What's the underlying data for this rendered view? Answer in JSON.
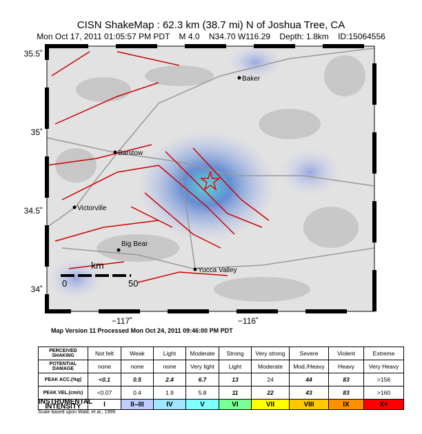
{
  "header": {
    "title": "CISN ShakeMap : 62.3 km (38.7 mi) N of Joshua Tree, CA",
    "subtitle": "Mon Oct 17, 2011 01:05:57 PM PDT    M 4.0    N34.70 W116.29    Depth: 1.8km    ID:15064556"
  },
  "map": {
    "lat_labels": [
      "35.5˚",
      "35˚",
      "34.5˚",
      "34˚"
    ],
    "lon_labels": [
      "−117˚",
      "−116˚"
    ],
    "cities": [
      "Baker",
      "Barstow",
      "Victorville",
      "Big Bear",
      "Yucca Valley"
    ],
    "scale": {
      "unit": "km",
      "start": "0",
      "end": "50"
    },
    "version": "Map Version 11 Processed Mon Oct 24, 2011 09:46:00 PM PDT"
  },
  "table": {
    "rows": [
      [
        "PERCEIVED SHAKING",
        "Not felt",
        "Weak",
        "Light",
        "Moderate",
        "Strong",
        "Very strong",
        "Severe",
        "Violent",
        "Extreme"
      ],
      [
        "POTENTIAL DAMAGE",
        "none",
        "none",
        "none",
        "Very light",
        "Light",
        "Moderate",
        "Mod./Heavy",
        "Heavy",
        "Very Heavy"
      ],
      [
        "PEAK ACC.(%g)",
        "<0.1",
        "0.5",
        "2.4",
        "6.7",
        "13",
        "24",
        "44",
        "83",
        ">156"
      ],
      [
        "PEAK VEL.(cm/s)",
        "<0.07",
        "0.4",
        "1.9",
        "5.8",
        "11",
        "22",
        "43",
        "83",
        ">160"
      ],
      [
        "INSTRUMENTAL INTENSITY",
        "I",
        "II–III",
        "IV",
        "V",
        "VI",
        "VII",
        "VIII",
        "IX",
        "X+"
      ]
    ],
    "note": "Scale based upon Wald, et al.; 1999"
  }
}
